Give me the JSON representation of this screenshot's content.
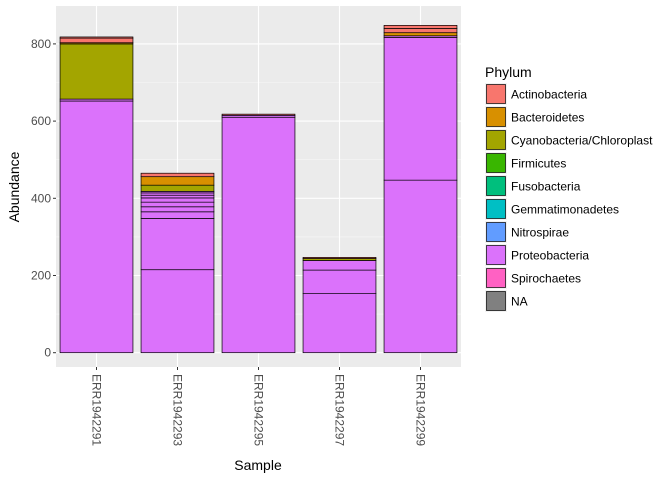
{
  "chart_data": {
    "type": "bar",
    "stacked": true,
    "title": "",
    "xlabel": "Sample",
    "ylabel": "Abundance",
    "ylim": [
      0,
      860
    ],
    "yticks": [
      0,
      200,
      400,
      600,
      800
    ],
    "grid": true,
    "legend_position": "right",
    "legend_title": "Phylum",
    "categories": [
      "ERR1942291",
      "ERR1942293",
      "ERR1942295",
      "ERR1942297",
      "ERR1942299"
    ],
    "phyla": [
      {
        "name": "Actinobacteria",
        "color": "#F8766D"
      },
      {
        "name": "Bacteroidetes",
        "color": "#D89000"
      },
      {
        "name": "Cyanobacteria/Chloroplast",
        "color": "#A3A500"
      },
      {
        "name": "Firmicutes",
        "color": "#39B600"
      },
      {
        "name": "Fusobacteria",
        "color": "#00BF7D"
      },
      {
        "name": "Gemmatimonadetes",
        "color": "#00BFC4"
      },
      {
        "name": "Nitrospirae",
        "color": "#619CFF"
      },
      {
        "name": "Proteobacteria",
        "color": "#DB72FB"
      },
      {
        "name": "Spirochaetes",
        "color": "#FF61C3"
      },
      {
        "name": "NA",
        "color": "#808080"
      }
    ],
    "segments": [
      [
        {
          "phylum": "Proteobacteria",
          "value": 652
        },
        {
          "phylum": "Proteobacteria",
          "value": 5
        },
        {
          "phylum": "Cyanobacteria/Chloroplast",
          "value": 143
        },
        {
          "phylum": "Bacteroidetes",
          "value": 3
        },
        {
          "phylum": "Actinobacteria",
          "value": 12
        },
        {
          "phylum": "Actinobacteria",
          "value": 3
        }
      ],
      [
        {
          "phylum": "Proteobacteria",
          "value": 215
        },
        {
          "phylum": "Proteobacteria",
          "value": 133
        },
        {
          "phylum": "Proteobacteria",
          "value": 17
        },
        {
          "phylum": "Proteobacteria",
          "value": 13
        },
        {
          "phylum": "Proteobacteria",
          "value": 12
        },
        {
          "phylum": "Proteobacteria",
          "value": 11
        },
        {
          "phylum": "Proteobacteria",
          "value": 7
        },
        {
          "phylum": "Proteobacteria",
          "value": 6
        },
        {
          "phylum": "Proteobacteria",
          "value": 4
        },
        {
          "phylum": "Cyanobacteria/Chloroplast",
          "value": 16
        },
        {
          "phylum": "Bacteroidetes",
          "value": 22
        },
        {
          "phylum": "Actinobacteria",
          "value": 9
        }
      ],
      [
        {
          "phylum": "Proteobacteria",
          "value": 610
        },
        {
          "phylum": "Proteobacteria",
          "value": 5
        },
        {
          "phylum": "Actinobacteria",
          "value": 3
        }
      ],
      [
        {
          "phylum": "Proteobacteria",
          "value": 153
        },
        {
          "phylum": "Proteobacteria",
          "value": 61
        },
        {
          "phylum": "Proteobacteria",
          "value": 25
        },
        {
          "phylum": "Cyanobacteria/Chloroplast",
          "value": 5
        },
        {
          "phylum": "Actinobacteria",
          "value": 3
        }
      ],
      [
        {
          "phylum": "Proteobacteria",
          "value": 447
        },
        {
          "phylum": "Proteobacteria",
          "value": 370
        },
        {
          "phylum": "Proteobacteria",
          "value": 4
        },
        {
          "phylum": "Bacteroidetes",
          "value": 8
        },
        {
          "phylum": "Actinobacteria",
          "value": 11
        },
        {
          "phylum": "Actinobacteria",
          "value": 8
        }
      ]
    ]
  }
}
